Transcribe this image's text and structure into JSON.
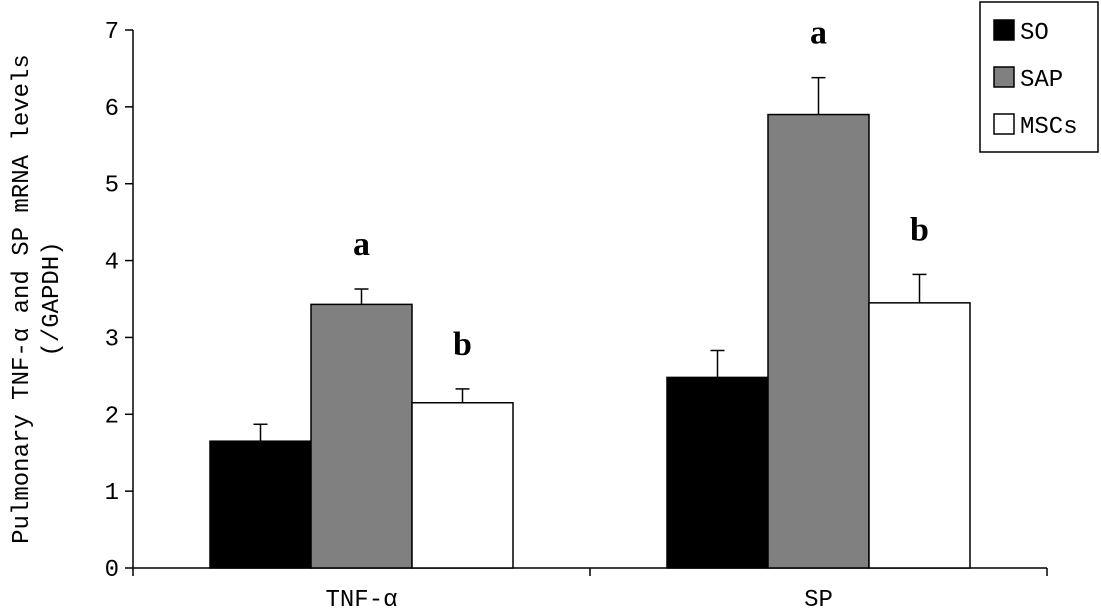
{
  "chart_data": {
    "type": "bar",
    "ylabel_lines": [
      "Pulmonary TNF-α and SP mRNA levels",
      "(/GAPDH)"
    ],
    "categories": [
      "TNF-α",
      "SP"
    ],
    "series": [
      {
        "name": "SO",
        "values": [
          1.65,
          2.48
        ],
        "errors": [
          0.22,
          0.35
        ],
        "color": "#000000"
      },
      {
        "name": "SAP",
        "values": [
          3.43,
          5.9
        ],
        "errors": [
          0.2,
          0.48
        ],
        "color": "#808080"
      },
      {
        "name": "MSCs",
        "values": [
          2.15,
          3.45
        ],
        "errors": [
          0.18,
          0.37
        ],
        "color": "#ffffff"
      }
    ],
    "annotations": [
      {
        "category": 0,
        "series": 1,
        "text": "a"
      },
      {
        "category": 0,
        "series": 2,
        "text": "b"
      },
      {
        "category": 1,
        "series": 1,
        "text": "a"
      },
      {
        "category": 1,
        "series": 2,
        "text": "b"
      }
    ],
    "ylim": [
      0,
      7
    ],
    "yticks": [
      0,
      1,
      2,
      3,
      4,
      5,
      6,
      7
    ],
    "grid": false,
    "legend_position": "top-right"
  }
}
